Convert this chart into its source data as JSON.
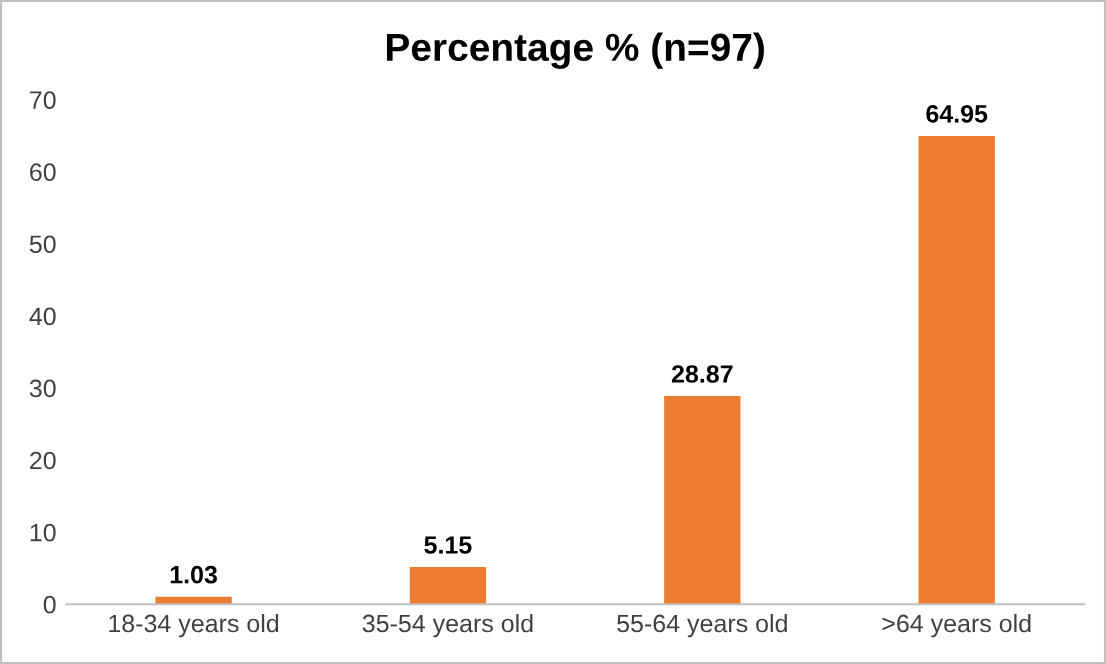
{
  "chart_data": {
    "type": "bar",
    "title": "Percentage % (n=97)",
    "categories": [
      "18-34 years old",
      "35-54 years old",
      "55-64 years old",
      ">64 years old"
    ],
    "values": [
      1.03,
      5.15,
      28.87,
      64.95
    ],
    "color": "#ed7d31",
    "ylim": [
      0,
      70
    ],
    "yticks": [
      0,
      10,
      20,
      30,
      40,
      50,
      60,
      70
    ],
    "grid": false,
    "data_labels": true
  }
}
